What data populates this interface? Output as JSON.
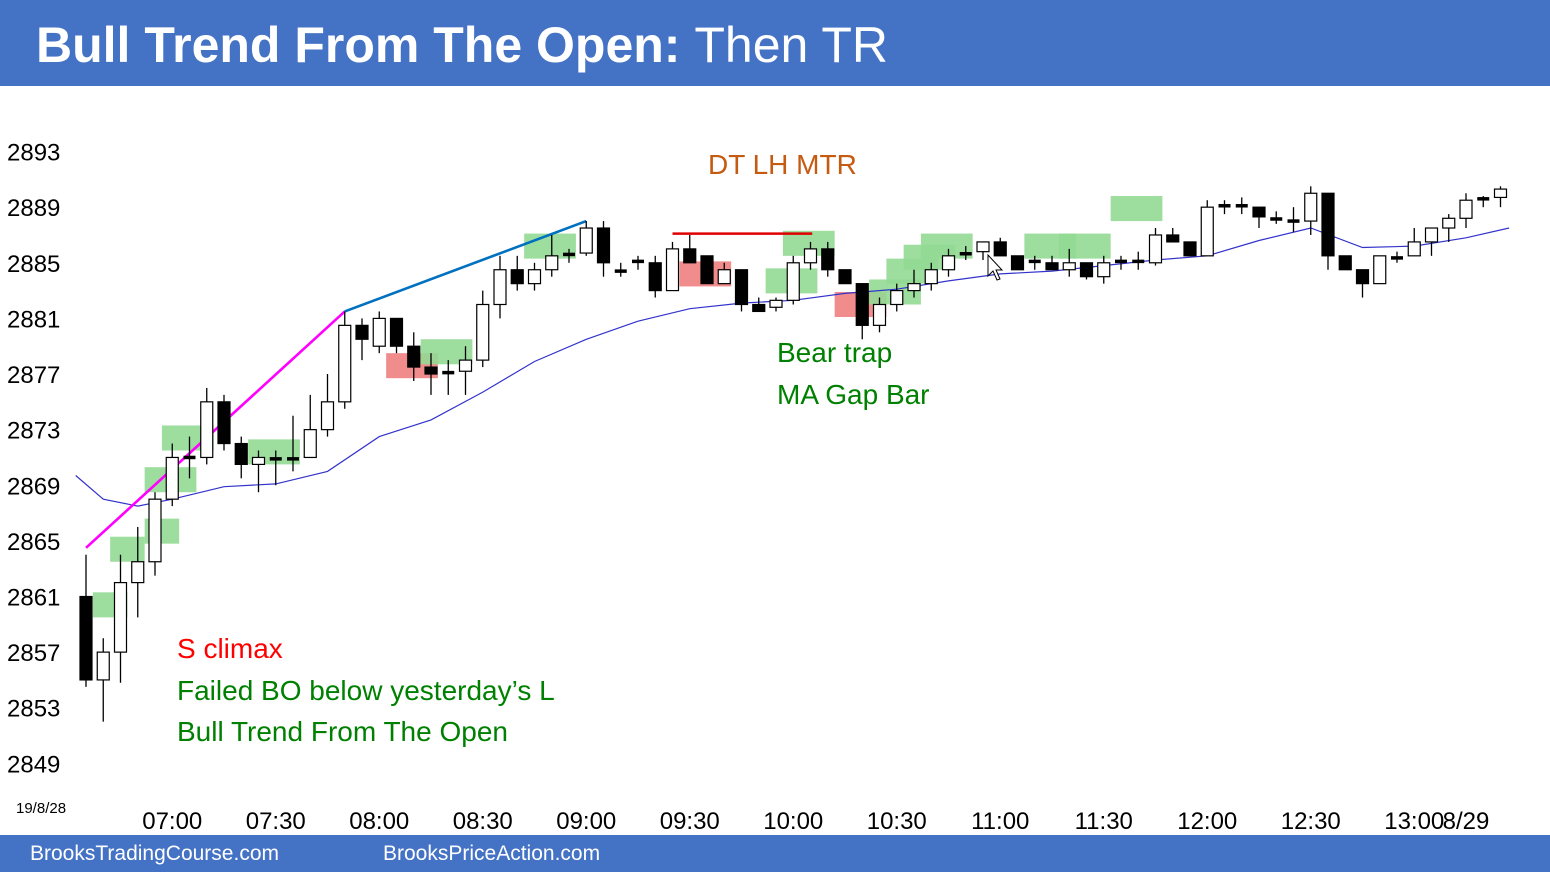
{
  "header": {
    "title_bold": "Bull Trend From The Open:",
    "title_rest": "Then TR"
  },
  "footer": {
    "left_link": "BrooksTradingCourse.com",
    "right_link": "BrooksPriceAction.com"
  },
  "colors": {
    "bar_blue": "#4472c4",
    "bull_highlight": "#92d994",
    "bear_highlight": "#f08080",
    "ma_line": "#3333cc",
    "climax_line": "#ff00ff",
    "trendline": "#0070c0",
    "double_top_line": "#e00000",
    "annotation_green": "#008000",
    "annotation_red": "#ff0000",
    "annotation_brown": "#c55a11"
  },
  "chart_data": {
    "type": "candlestick",
    "date_label": "19/8/28",
    "y_ticks": [
      2893,
      2889,
      2885,
      2881,
      2877,
      2873,
      2869,
      2865,
      2861,
      2857,
      2853,
      2849
    ],
    "ylim": [
      2847.3,
      2895.7
    ],
    "x_ticks": [
      {
        "label": "07:00",
        "bar": 5
      },
      {
        "label": "07:30",
        "bar": 11
      },
      {
        "label": "08:00",
        "bar": 17
      },
      {
        "label": "08:30",
        "bar": 23
      },
      {
        "label": "09:00",
        "bar": 29
      },
      {
        "label": "09:30",
        "bar": 35
      },
      {
        "label": "10:00",
        "bar": 41
      },
      {
        "label": "10:30",
        "bar": 47
      },
      {
        "label": "11:00",
        "bar": 53
      },
      {
        "label": "11:30",
        "bar": 59
      },
      {
        "label": "12:00",
        "bar": 65
      },
      {
        "label": "12:30",
        "bar": 71
      },
      {
        "label": "13:00",
        "bar": 77
      },
      {
        "label": "8/29",
        "bar": 80
      }
    ],
    "bars": [
      [
        2861,
        2864,
        2854.5,
        2855
      ],
      [
        2855,
        2858,
        2852,
        2857
      ],
      [
        2857,
        2864,
        2854.8,
        2862
      ],
      [
        2862,
        2866,
        2859.5,
        2863.5
      ],
      [
        2863.5,
        2868.5,
        2862.5,
        2868
      ],
      [
        2868,
        2872,
        2867.5,
        2871
      ],
      [
        2871,
        2872.5,
        2869.5,
        2871
      ],
      [
        2871,
        2876,
        2870.5,
        2875
      ],
      [
        2875,
        2875.5,
        2871.5,
        2872
      ],
      [
        2872,
        2872.5,
        2869.5,
        2870.5
      ],
      [
        2870.5,
        2871.5,
        2868.5,
        2871
      ],
      [
        2871,
        2871.5,
        2869,
        2870.8
      ],
      [
        2870.8,
        2874,
        2870,
        2871
      ],
      [
        2871,
        2875.5,
        2871,
        2873
      ],
      [
        2873,
        2877,
        2872.5,
        2875
      ],
      [
        2875,
        2881.5,
        2874.5,
        2880.5
      ],
      [
        2880.5,
        2881,
        2878,
        2879.5
      ],
      [
        2879,
        2881.5,
        2878.5,
        2881
      ],
      [
        2881,
        2881,
        2878.5,
        2879
      ],
      [
        2879,
        2880,
        2876.5,
        2877.5
      ],
      [
        2877.5,
        2878.5,
        2875.5,
        2877
      ],
      [
        2877,
        2878,
        2875.5,
        2877.2
      ],
      [
        2877.2,
        2879,
        2875.5,
        2878
      ],
      [
        2878,
        2883,
        2877.5,
        2882
      ],
      [
        2882,
        2885.5,
        2881,
        2884.5
      ],
      [
        2884.5,
        2885.5,
        2883,
        2883.5
      ],
      [
        2883.5,
        2885,
        2883,
        2884.5
      ],
      [
        2884.5,
        2887,
        2884,
        2885.5
      ],
      [
        2885.5,
        2886,
        2885,
        2885.7
      ],
      [
        2885.7,
        2888,
        2885.5,
        2887.5
      ],
      [
        2887.5,
        2888,
        2884,
        2885
      ],
      [
        2884.5,
        2885,
        2884,
        2884.3
      ],
      [
        2885,
        2885.5,
        2884.5,
        2885.2
      ],
      [
        2885,
        2885.5,
        2882.5,
        2883
      ],
      [
        2883,
        2886.5,
        2883,
        2886
      ],
      [
        2886,
        2887,
        2885,
        2885
      ],
      [
        2885.5,
        2885.5,
        2883.5,
        2883.5
      ],
      [
        2883.5,
        2885,
        2883.5,
        2884.5
      ],
      [
        2884.5,
        2884.5,
        2881.5,
        2882
      ],
      [
        2882,
        2882.5,
        2881.5,
        2881.5
      ],
      [
        2881.8,
        2882.5,
        2881.5,
        2882.3
      ],
      [
        2882.3,
        2885.5,
        2882,
        2885
      ],
      [
        2885,
        2886.5,
        2884.5,
        2886
      ],
      [
        2886,
        2886.5,
        2884,
        2884.5
      ],
      [
        2884.5,
        2884.5,
        2883.5,
        2883.5
      ],
      [
        2883.5,
        2883.5,
        2879.5,
        2880.5
      ],
      [
        2880.5,
        2882.5,
        2880,
        2882
      ],
      [
        2882,
        2883.5,
        2881.5,
        2883
      ],
      [
        2883,
        2884.5,
        2882.5,
        2883.5
      ],
      [
        2883.5,
        2885,
        2883,
        2884.5
      ],
      [
        2884.5,
        2886,
        2884,
        2885.5
      ],
      [
        2885.5,
        2886.2,
        2885.2,
        2885.8
      ],
      [
        2885.8,
        2886.5,
        2885.2,
        2886.5
      ],
      [
        2886.5,
        2886.8,
        2885.5,
        2885.5
      ],
      [
        2885.5,
        2885.5,
        2884.5,
        2884.5
      ],
      [
        2885.2,
        2885.5,
        2884.5,
        2885.0
      ],
      [
        2885,
        2885.5,
        2884.5,
        2884.5
      ],
      [
        2884.5,
        2886,
        2884,
        2885
      ],
      [
        2885,
        2885,
        2883.8,
        2884
      ],
      [
        2884,
        2885.5,
        2883.5,
        2885
      ],
      [
        2885,
        2885.5,
        2884.5,
        2885.2
      ],
      [
        2885.2,
        2885.8,
        2884.5,
        2885
      ],
      [
        2885,
        2887.5,
        2884.8,
        2887
      ],
      [
        2887,
        2887.5,
        2886.5,
        2886.5
      ],
      [
        2886.5,
        2886.5,
        2885.5,
        2885.5
      ],
      [
        2885.5,
        2889.5,
        2885.5,
        2889
      ],
      [
        2889,
        2889.5,
        2888.5,
        2889.2
      ],
      [
        2889.2,
        2889.7,
        2888.5,
        2889
      ],
      [
        2889,
        2889,
        2887.5,
        2888.3
      ],
      [
        2888.3,
        2888.7,
        2887.8,
        2888
      ],
      [
        2888,
        2889,
        2887.2,
        2888
      ],
      [
        2888,
        2890.5,
        2887,
        2890
      ],
      [
        2890,
        2890,
        2884.5,
        2885.5
      ],
      [
        2885.5,
        2885.5,
        2884.5,
        2884.5
      ],
      [
        2884.5,
        2884.5,
        2882.5,
        2883.5
      ],
      [
        2883.5,
        2885.5,
        2883.5,
        2885.5
      ],
      [
        2885.2,
        2885.8,
        2885,
        2885.5
      ],
      [
        2885.5,
        2887.5,
        2885.5,
        2886.5
      ],
      [
        2886.5,
        2887.5,
        2885.5,
        2887.5
      ],
      [
        2887.5,
        2888.5,
        2886.5,
        2888.2
      ],
      [
        2888.2,
        2890,
        2887.5,
        2889.5
      ],
      [
        2889.5,
        2889.8,
        2889,
        2889.7
      ],
      [
        2889.7,
        2890.5,
        2889,
        2890.3
      ]
    ],
    "ema20": [
      [
        -0.6,
        2869.7
      ],
      [
        1,
        2868
      ],
      [
        3,
        2867.5
      ],
      [
        5,
        2868
      ],
      [
        8,
        2868.9
      ],
      [
        11,
        2869.1
      ],
      [
        14,
        2870
      ],
      [
        17,
        2872.5
      ],
      [
        20,
        2873.7
      ],
      [
        23,
        2875.7
      ],
      [
        26,
        2877.9
      ],
      [
        29,
        2879.5
      ],
      [
        32,
        2880.8
      ],
      [
        35,
        2881.7
      ],
      [
        38,
        2882.1
      ],
      [
        41,
        2882.3
      ],
      [
        44,
        2882.8
      ],
      [
        47,
        2883.1
      ],
      [
        50,
        2883.7
      ],
      [
        53,
        2884.2
      ],
      [
        56,
        2884.4
      ],
      [
        59,
        2884.8
      ],
      [
        62,
        2885.2
      ],
      [
        65,
        2885.5
      ],
      [
        68,
        2886.6
      ],
      [
        71,
        2887.5
      ],
      [
        74,
        2886.1
      ],
      [
        77,
        2886.2
      ],
      [
        80,
        2886.8
      ],
      [
        82.5,
        2887.5
      ]
    ],
    "highlights": [
      {
        "type": "bull",
        "x0": 0.9,
        "x1": 2.9,
        "ylo": 2859.5,
        "yhi": 2861.3
      },
      {
        "type": "bull",
        "x0": 1.9,
        "x1": 3.9,
        "ylo": 2863.5,
        "yhi": 2865.3
      },
      {
        "type": "bull",
        "x0": 3.9,
        "x1": 5.9,
        "ylo": 2864.8,
        "yhi": 2866.6
      },
      {
        "type": "bull",
        "x0": 3.9,
        "x1": 6.9,
        "ylo": 2868.5,
        "yhi": 2870.3
      },
      {
        "type": "bull",
        "x0": 4.9,
        "x1": 7.9,
        "ylo": 2871.5,
        "yhi": 2873.3
      },
      {
        "type": "bull",
        "x0": 9.9,
        "x1": 12.9,
        "ylo": 2870.5,
        "yhi": 2872.3
      },
      {
        "type": "bear",
        "x0": 17.9,
        "x1": 20.9,
        "ylo": 2876.7,
        "yhi": 2878.5
      },
      {
        "type": "bull",
        "x0": 19.9,
        "x1": 22.9,
        "ylo": 2877.7,
        "yhi": 2879.5
      },
      {
        "type": "bull",
        "x0": 25.9,
        "x1": 28.9,
        "ylo": 2885.3,
        "yhi": 2887.1
      },
      {
        "type": "bear",
        "x0": 34.9,
        "x1": 37.9,
        "ylo": 2883.3,
        "yhi": 2885.1
      },
      {
        "type": "bull",
        "x0": 39.9,
        "x1": 42.9,
        "ylo": 2882.8,
        "yhi": 2884.6
      },
      {
        "type": "bull",
        "x0": 40.9,
        "x1": 43.9,
        "ylo": 2885.5,
        "yhi": 2887.3
      },
      {
        "type": "bear",
        "x0": 43.9,
        "x1": 46.9,
        "ylo": 2881.1,
        "yhi": 2882.9
      },
      {
        "type": "bull",
        "x0": 45.9,
        "x1": 48.9,
        "ylo": 2882,
        "yhi": 2883.8
      },
      {
        "type": "bull",
        "x0": 46.9,
        "x1": 49.9,
        "ylo": 2883.5,
        "yhi": 2885.3
      },
      {
        "type": "bull",
        "x0": 47.9,
        "x1": 50.9,
        "ylo": 2884.5,
        "yhi": 2886.3
      },
      {
        "type": "bull",
        "x0": 48.9,
        "x1": 51.9,
        "ylo": 2885.3,
        "yhi": 2887.1
      },
      {
        "type": "bull",
        "x0": 54.9,
        "x1": 57.9,
        "ylo": 2885.3,
        "yhi": 2887.1
      },
      {
        "type": "bull",
        "x0": 56.9,
        "x1": 59.9,
        "ylo": 2885.3,
        "yhi": 2887.1
      },
      {
        "type": "bull",
        "x0": 59.9,
        "x1": 62.9,
        "ylo": 2888,
        "yhi": 2889.8
      }
    ],
    "lines": [
      {
        "name": "climax-line",
        "x0": 0,
        "y0": 2864.5,
        "x1": 15,
        "y1": 2881.5
      },
      {
        "name": "channel-trendline",
        "x0": 15,
        "y0": 2881.5,
        "x1": 29,
        "y1": 2888
      },
      {
        "name": "double-top-line",
        "x0": 34,
        "y0": 2887.1,
        "x1": 42.1,
        "y1": 2887.1
      }
    ]
  },
  "annotations": {
    "dt_lh_mtr": "DT LH MTR",
    "bear_trap": "Bear trap",
    "ma_gap_bar": "MA Gap Bar",
    "s_climax": "S climax",
    "failed_bo": "Failed BO below yesterday’s L",
    "bull_trend": "Bull Trend From The Open"
  }
}
